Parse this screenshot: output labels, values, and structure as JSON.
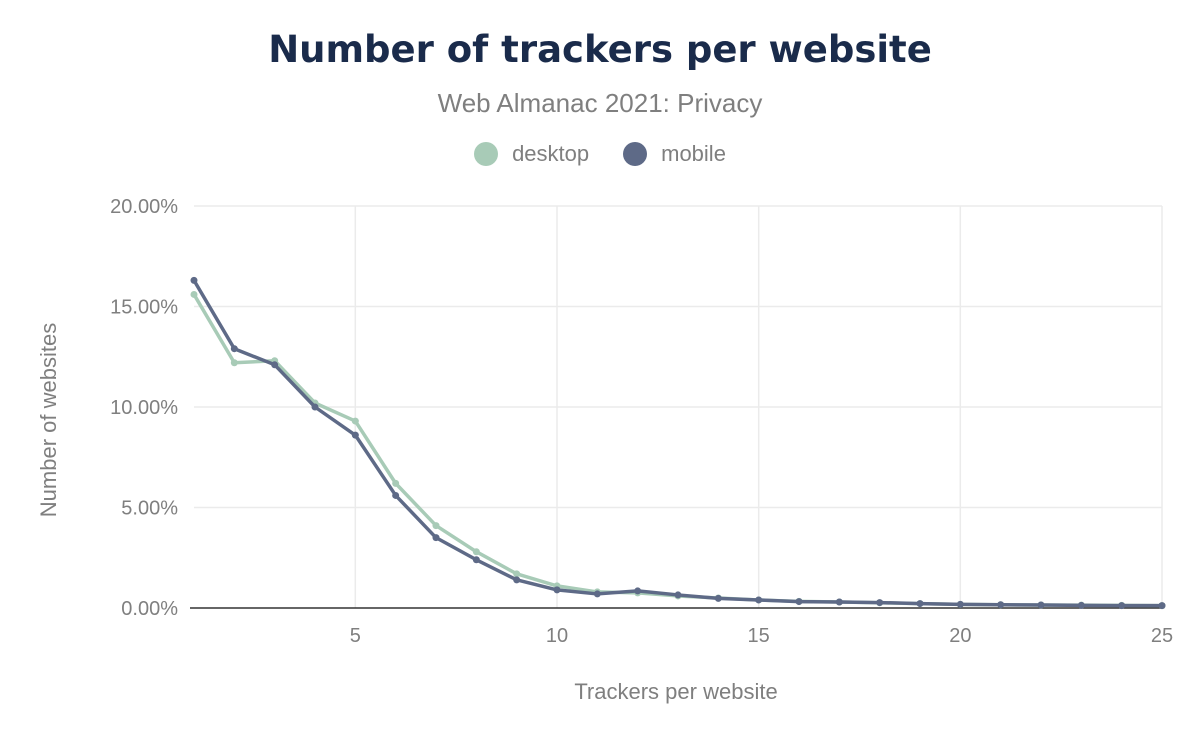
{
  "colors": {
    "desktop": "#a8cbb7",
    "mobile": "#5e6a87",
    "grid": "#ebebeb",
    "axis_line": "#333333"
  },
  "chart_data": {
    "type": "line",
    "title": "Number of trackers per website",
    "subtitle": "Web Almanac 2021: Privacy",
    "xlabel": "Trackers per website",
    "ylabel": "Number of websites",
    "xlim": [
      1,
      25
    ],
    "ylim": [
      0,
      20
    ],
    "x_ticks": [
      5,
      10,
      15,
      20,
      25
    ],
    "x_tick_labels": [
      "5",
      "10",
      "15",
      "20",
      "25"
    ],
    "y_ticks": [
      0,
      5,
      10,
      15,
      20
    ],
    "y_tick_labels": [
      "0.00%",
      "5.00%",
      "10.00%",
      "15.00%",
      "20.00%"
    ],
    "grid": true,
    "legend_position": "top-center",
    "x": [
      1,
      2,
      3,
      4,
      5,
      6,
      7,
      8,
      9,
      10,
      11,
      12,
      13,
      14,
      15,
      16,
      17,
      18,
      19,
      20,
      21,
      22,
      23,
      24,
      25
    ],
    "series": [
      {
        "name": "desktop",
        "values": [
          15.6,
          12.2,
          12.3,
          10.2,
          9.3,
          6.2,
          4.1,
          2.8,
          1.7,
          1.1,
          0.8,
          0.75,
          0.6,
          0.5,
          0.4,
          0.33,
          0.3,
          0.26,
          0.22,
          0.18,
          0.16,
          0.15,
          0.14,
          0.13,
          0.12
        ]
      },
      {
        "name": "mobile",
        "values": [
          16.3,
          12.9,
          12.1,
          10.0,
          8.6,
          5.6,
          3.5,
          2.4,
          1.4,
          0.9,
          0.7,
          0.85,
          0.65,
          0.48,
          0.4,
          0.32,
          0.3,
          0.27,
          0.22,
          0.18,
          0.16,
          0.15,
          0.13,
          0.12,
          0.12
        ]
      }
    ]
  }
}
